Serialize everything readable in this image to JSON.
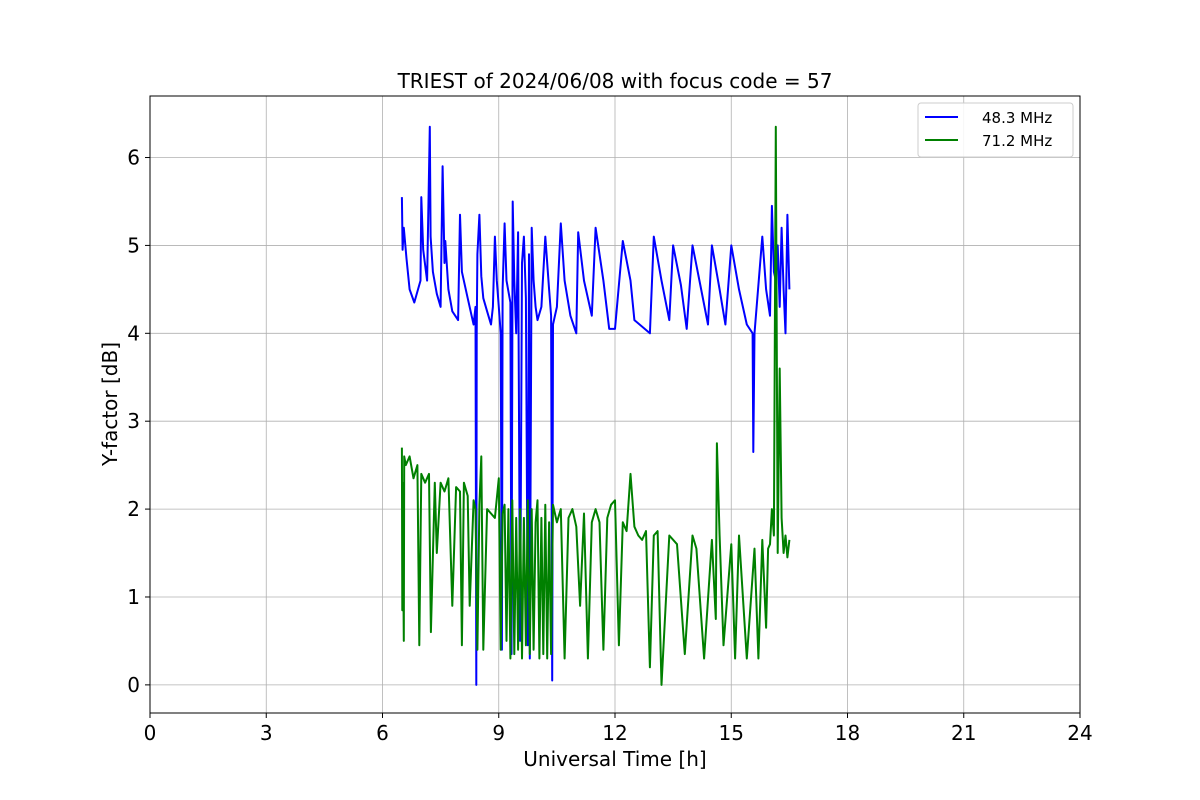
{
  "chart_data": {
    "type": "line",
    "title": "TRIEST of 2024/06/08 with focus code = 57",
    "xlabel": "Universal Time [h]",
    "ylabel": "Y-factor [dB]",
    "xlim": [
      0,
      24
    ],
    "ylim": [
      -0.32,
      6.7
    ],
    "xticks": [
      0,
      3,
      6,
      9,
      12,
      15,
      18,
      21,
      24
    ],
    "yticks": [
      0,
      1,
      2,
      3,
      4,
      5,
      6
    ],
    "xtick_labels": [
      "0",
      "3",
      "6",
      "9",
      "12",
      "15",
      "18",
      "21",
      "24"
    ],
    "ytick_labels": [
      "0",
      "1",
      "2",
      "3",
      "4",
      "5",
      "6"
    ],
    "grid": true,
    "legend_position": "top-right",
    "series": [
      {
        "name": "48.3 MHz",
        "color": "#0000ff",
        "x": [
          6.5,
          6.52,
          6.55,
          6.62,
          6.7,
          6.82,
          6.98,
          7.0,
          7.05,
          7.15,
          7.22,
          7.24,
          7.3,
          7.4,
          7.5,
          7.55,
          7.6,
          7.62,
          7.7,
          7.8,
          7.95,
          8.0,
          8.05,
          8.2,
          8.3,
          8.35,
          8.4,
          8.42,
          8.43,
          8.45,
          8.5,
          8.55,
          8.6,
          8.7,
          8.8,
          8.85,
          8.9,
          8.95,
          9.0,
          9.05,
          9.08,
          9.1,
          9.15,
          9.2,
          9.3,
          9.33,
          9.36,
          9.4,
          9.45,
          9.5,
          9.55,
          9.6,
          9.65,
          9.7,
          9.75,
          9.78,
          9.8,
          9.85,
          9.9,
          9.95,
          10.0,
          10.1,
          10.2,
          10.3,
          10.35,
          10.38,
          10.4,
          10.5,
          10.6,
          10.7,
          10.85,
          11.0,
          11.05,
          11.2,
          11.4,
          11.5,
          11.7,
          11.85,
          12.0,
          12.2,
          12.4,
          12.5,
          12.9,
          13.0,
          13.2,
          13.4,
          13.5,
          13.7,
          13.85,
          14.0,
          14.2,
          14.4,
          14.5,
          14.7,
          14.85,
          15.0,
          15.2,
          15.4,
          15.55,
          15.57,
          15.6,
          15.8,
          15.9,
          16.0,
          16.05,
          16.1,
          16.15,
          16.2,
          16.25,
          16.3,
          16.35,
          16.4,
          16.45,
          16.5
        ],
        "y": [
          5.55,
          4.95,
          5.2,
          4.85,
          4.5,
          4.35,
          4.6,
          5.55,
          4.95,
          4.6,
          6.35,
          5.1,
          4.7,
          4.45,
          4.3,
          5.9,
          4.8,
          5.05,
          4.5,
          4.25,
          4.15,
          5.35,
          4.7,
          4.4,
          4.2,
          4.1,
          4.3,
          0.0,
          4.0,
          4.9,
          5.35,
          4.65,
          4.4,
          4.25,
          4.1,
          4.3,
          5.1,
          4.6,
          4.3,
          4.0,
          0.4,
          4.5,
          5.25,
          4.6,
          4.35,
          0.35,
          5.5,
          4.6,
          4.0,
          5.15,
          0.5,
          4.8,
          5.1,
          4.4,
          0.45,
          4.9,
          0.3,
          5.2,
          4.6,
          4.3,
          4.15,
          4.3,
          5.1,
          4.5,
          4.2,
          0.05,
          4.1,
          4.3,
          5.25,
          4.6,
          4.2,
          4.0,
          5.15,
          4.6,
          4.2,
          5.2,
          4.6,
          4.05,
          4.05,
          5.05,
          4.6,
          4.15,
          4.0,
          5.1,
          4.6,
          4.15,
          5.0,
          4.55,
          4.05,
          5.0,
          4.55,
          4.1,
          5.0,
          4.5,
          4.1,
          5.0,
          4.5,
          4.1,
          4.0,
          2.65,
          4.0,
          5.1,
          4.5,
          4.2,
          5.45,
          4.7,
          4.6,
          5.0,
          4.3,
          5.2,
          4.5,
          4.0,
          5.35,
          4.5
        ]
      },
      {
        "name": "71.2 MHz",
        "color": "#008000",
        "x": [
          6.5,
          6.51,
          6.52,
          6.55,
          6.56,
          6.6,
          6.7,
          6.8,
          6.9,
          6.95,
          7.0,
          7.1,
          7.2,
          7.25,
          7.35,
          7.4,
          7.5,
          7.6,
          7.7,
          7.8,
          7.9,
          8.0,
          8.05,
          8.1,
          8.2,
          8.25,
          8.35,
          8.4,
          8.45,
          8.5,
          8.55,
          8.6,
          8.7,
          8.8,
          8.9,
          9.0,
          9.05,
          9.1,
          9.15,
          9.2,
          9.25,
          9.3,
          9.35,
          9.4,
          9.45,
          9.5,
          9.55,
          9.6,
          9.65,
          9.7,
          9.75,
          9.8,
          9.85,
          9.9,
          9.95,
          10.0,
          10.05,
          10.1,
          10.15,
          10.2,
          10.25,
          10.3,
          10.35,
          10.4,
          10.5,
          10.6,
          10.7,
          10.8,
          10.9,
          11.0,
          11.1,
          11.2,
          11.3,
          11.4,
          11.5,
          11.6,
          11.7,
          11.8,
          11.9,
          12.0,
          12.1,
          12.2,
          12.3,
          12.4,
          12.5,
          12.6,
          12.7,
          12.8,
          12.9,
          13.0,
          13.1,
          13.2,
          13.4,
          13.6,
          13.8,
          14.0,
          14.1,
          14.3,
          14.5,
          14.6,
          14.63,
          14.7,
          14.8,
          15.0,
          15.1,
          15.2,
          15.4,
          15.6,
          15.7,
          15.8,
          15.9,
          15.95,
          16.0,
          16.05,
          16.1,
          16.15,
          16.2,
          16.25,
          16.3,
          16.35,
          16.4,
          16.45,
          16.5
        ],
        "y": [
          2.7,
          0.85,
          2.3,
          0.5,
          2.6,
          2.5,
          2.6,
          2.35,
          2.5,
          0.45,
          2.4,
          2.3,
          2.4,
          0.6,
          2.3,
          1.5,
          2.3,
          2.2,
          2.35,
          0.9,
          2.25,
          2.2,
          0.45,
          2.3,
          2.15,
          0.9,
          2.1,
          2.0,
          0.4,
          2.05,
          2.6,
          0.4,
          2.0,
          1.95,
          1.9,
          2.35,
          0.4,
          1.95,
          2.05,
          0.5,
          2.0,
          0.3,
          2.1,
          0.35,
          1.9,
          0.4,
          2.0,
          0.3,
          1.9,
          0.45,
          2.1,
          0.35,
          2.0,
          0.4,
          1.85,
          2.1,
          0.3,
          1.9,
          0.35,
          2.05,
          0.3,
          1.85,
          0.35,
          2.05,
          1.85,
          2.0,
          0.3,
          1.9,
          2.0,
          1.8,
          0.9,
          1.95,
          0.3,
          1.85,
          2.0,
          1.85,
          0.4,
          1.9,
          2.05,
          2.1,
          0.45,
          1.85,
          1.75,
          2.4,
          1.8,
          1.7,
          1.65,
          1.75,
          0.2,
          1.7,
          1.75,
          0.0,
          1.7,
          1.6,
          0.35,
          1.7,
          1.55,
          0.3,
          1.65,
          0.75,
          2.75,
          1.7,
          0.45,
          1.6,
          0.3,
          1.7,
          0.3,
          1.55,
          0.3,
          1.65,
          0.65,
          1.55,
          1.6,
          2.0,
          1.7,
          6.35,
          1.5,
          3.6,
          1.9,
          1.5,
          1.7,
          1.45,
          1.65
        ]
      }
    ]
  }
}
